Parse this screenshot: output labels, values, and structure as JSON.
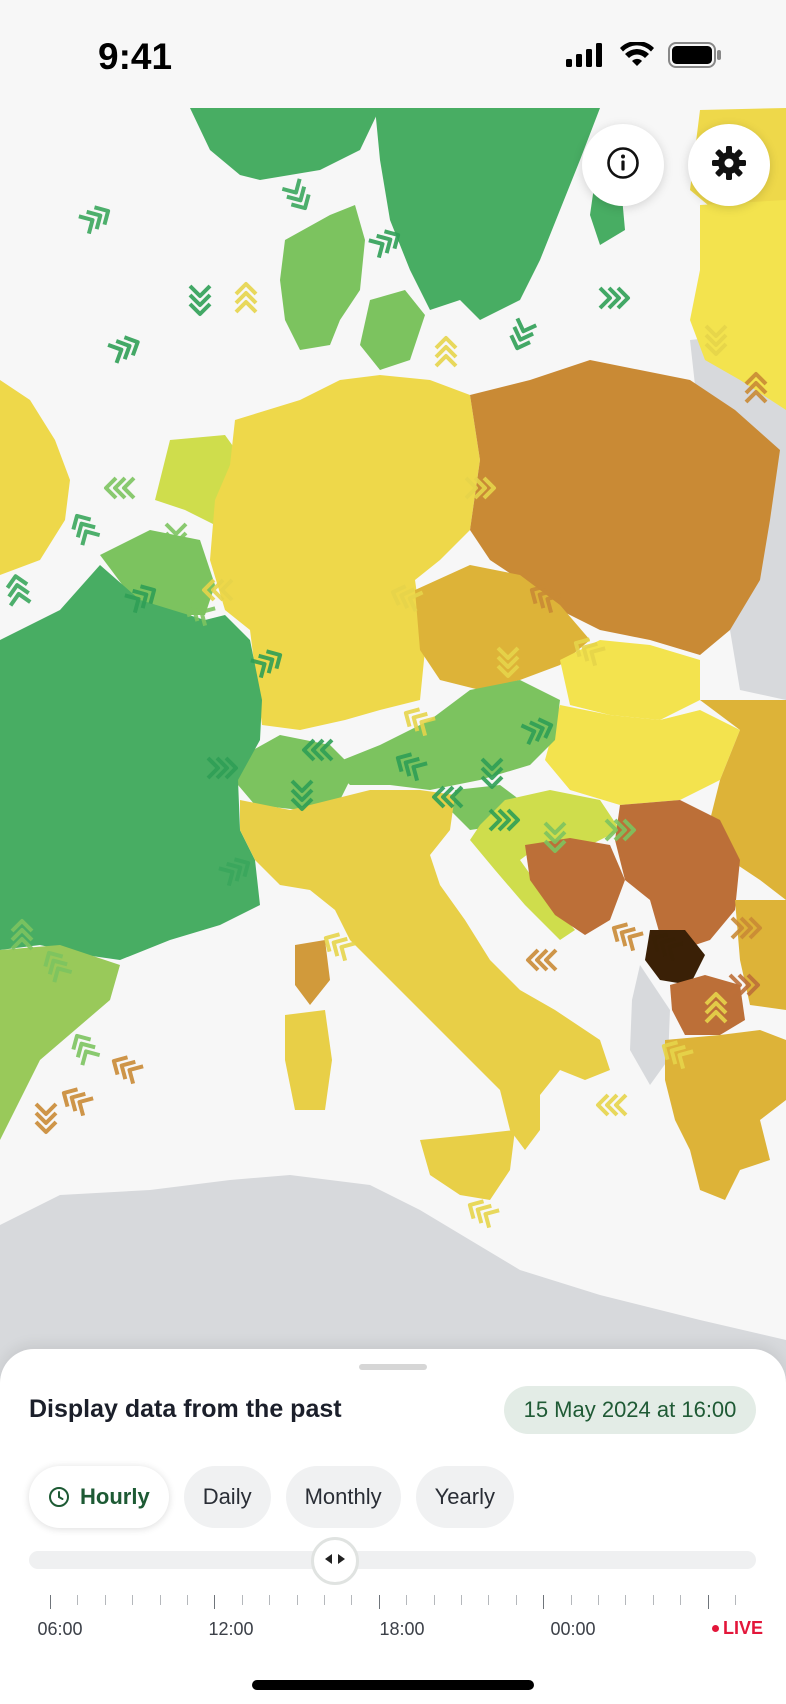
{
  "status_bar": {
    "time": "9:41",
    "icons": [
      "cellular-signal-icon",
      "wifi-icon",
      "battery-icon"
    ]
  },
  "map": {
    "buttons": [
      {
        "name": "info-button",
        "icon": "info-icon"
      },
      {
        "name": "settings-button",
        "icon": "gear-icon"
      }
    ],
    "colors": {
      "sea": "#f7f7f7",
      "non_covered_land": "#d7d9dc",
      "low_green": "#48ad63",
      "green": "#7cc35f",
      "yellow_green": "#cfdd4c",
      "yellow": "#eed84a",
      "bright_yellow": "#f3e34e",
      "mustard": "#ddb338",
      "ochre": "#c98a35",
      "rust": "#bc6f38",
      "dark": "#3a2006"
    }
  },
  "panel": {
    "title": "Display data from the past",
    "selected_datetime": "15 May 2024 at 16:00",
    "tabs": [
      {
        "label": "Hourly",
        "active": true,
        "icon": "clock-icon"
      },
      {
        "label": "Daily",
        "active": false
      },
      {
        "label": "Monthly",
        "active": false
      },
      {
        "label": "Yearly",
        "active": false
      }
    ],
    "time_labels": [
      "06:00",
      "12:00",
      "18:00",
      "00:00"
    ],
    "live_label": "LIVE",
    "thumb_icon": "slider-arrows-icon"
  }
}
